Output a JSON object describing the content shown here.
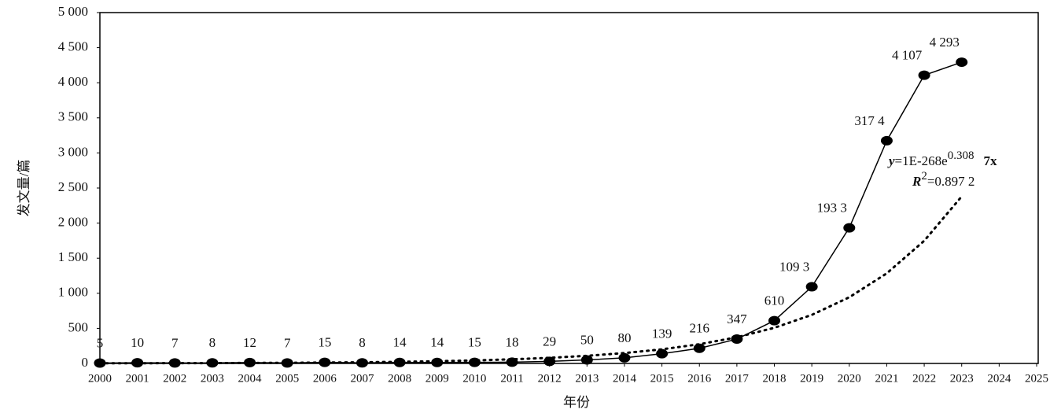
{
  "chart_data": {
    "type": "line",
    "x": [
      2000,
      2001,
      2002,
      2003,
      2004,
      2005,
      2006,
      2007,
      2008,
      2009,
      2010,
      2011,
      2012,
      2013,
      2014,
      2015,
      2016,
      2017,
      2018,
      2019,
      2020,
      2021,
      2022,
      2023
    ],
    "series": [
      {
        "color": "#000000",
        "values": [
          5,
          10,
          7,
          8,
          12,
          7,
          15,
          8,
          14,
          14,
          15,
          18,
          29,
          50,
          80,
          139,
          216,
          347,
          610,
          1093,
          1933,
          3174,
          4107,
          4293
        ],
        "value_labels": [
          "5",
          "10",
          "7",
          "8",
          "12",
          "7",
          "15",
          "8",
          "14",
          "14",
          "15",
          "18",
          "29",
          "50",
          "80",
          "139",
          "216",
          "347",
          "610",
          "109 3",
          "193 3",
          "317 4",
          "4 107",
          "4 293"
        ]
      }
    ],
    "trendline": {
      "color": "#000000",
      "values": [
        2,
        3,
        4,
        5,
        7,
        9,
        13,
        17,
        23,
        32,
        43,
        59,
        80,
        109,
        148,
        201,
        274,
        373,
        508,
        692,
        943,
        1284,
        1748,
        2380
      ]
    },
    "equation": [
      "y",
      "=1E-268e",
      "0.308",
      "7x"
    ],
    "r_squared": [
      "R",
      "2",
      "=0.897 2"
    ],
    "xlabel": "年份",
    "ylabel": "发文量/篇",
    "xlim": [
      2000,
      2025
    ],
    "xticks": [
      2000,
      2001,
      2002,
      2003,
      2004,
      2005,
      2006,
      2007,
      2008,
      2009,
      2010,
      2011,
      2012,
      2013,
      2014,
      2015,
      2016,
      2017,
      2018,
      2019,
      2020,
      2021,
      2022,
      2023,
      2024,
      2025
    ],
    "ylim": [
      0,
      5000
    ],
    "yticks": [
      0,
      500,
      {
        "value": 1000,
        "label": "1 000"
      },
      {
        "value": 1500,
        "label": "1 500"
      },
      {
        "value": 2000,
        "label": "2 000"
      },
      {
        "value": 2500,
        "label": "2 500"
      },
      {
        "value": 3000,
        "label": "3 000"
      },
      {
        "value": 3500,
        "label": "3 500"
      },
      {
        "value": 4000,
        "label": "4 000"
      },
      {
        "value": 4500,
        "label": "4 500"
      },
      {
        "value": 5000,
        "label": "5 000"
      }
    ]
  }
}
